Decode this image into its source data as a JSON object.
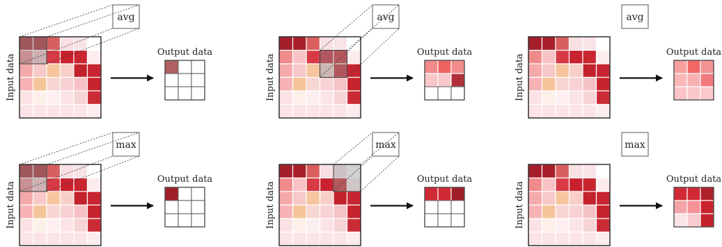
{
  "labels": {
    "input": "Input data",
    "output": "Output data"
  },
  "colors": {
    "grid_line": "#ffffff",
    "border": "#222222",
    "highlight_overlay": "#9a9a9a",
    "empty_cell": "#ffffff"
  },
  "input_grid": [
    [
      "#a41f2a",
      "#a8202b",
      "#d95f5f",
      "#f8dfe2",
      "#f8e3e6",
      "#ffffff"
    ],
    [
      "#f08b8b",
      "#f9c3c6",
      "#d83a45",
      "#c9212f",
      "#c9252f",
      "#fdecee"
    ],
    [
      "#f4a9ab",
      "#f8c8c9",
      "#f6c49d",
      "#f7cfc8",
      "#c3222c",
      "#c72531"
    ],
    [
      "#f6b2b5",
      "#f5c499",
      "#f8d6d2",
      "#f8d1d3",
      "#f5c2c5",
      "#c8242e"
    ],
    [
      "#fbe2e4",
      "#fdf0e8",
      "#fdeef0",
      "#fbe3e6",
      "#f6d4d6",
      "#cb2b35"
    ],
    [
      "#fbe3e6",
      "#fbe4e6",
      "#fbe4e6",
      "#fbe4e6",
      "#fbe4e6",
      "#fbecee"
    ]
  ],
  "panels": [
    {
      "operation": "avg",
      "window": [
        0,
        0
      ],
      "output": [
        "#b06060",
        "",
        "",
        "",
        "",
        "",
        "",
        "",
        ""
      ]
    },
    {
      "operation": "avg",
      "window": [
        1,
        3
      ],
      "output": [
        "#f28b8b",
        "#f16262",
        "#f28c8c",
        "#fac7c8",
        "#f8c8ca",
        "#b0303a",
        "",
        "",
        ""
      ]
    },
    {
      "operation": "avg",
      "window": null,
      "output": [
        "#f9a0a0",
        "#f26666",
        "#f39393",
        "#f9b7b8",
        "#f9b0b2",
        "#f17a7e",
        "#fac4c6",
        "#fac7c8",
        "#fac8ca"
      ]
    },
    {
      "operation": "max",
      "window": [
        0,
        0
      ],
      "output": [
        "#a01e28",
        "",
        "",
        "",
        "",
        "",
        "",
        "",
        ""
      ]
    },
    {
      "operation": "max",
      "window": [
        0,
        4
      ],
      "output": [
        "#d12a35",
        "#d12a35",
        "#a01e28",
        "",
        "",
        "",
        "",
        "",
        ""
      ]
    },
    {
      "operation": "max",
      "window": null,
      "output": [
        "#d12a35",
        "#d12a35",
        "#b0202a",
        "#f5a4a8",
        "#f69296",
        "#c9232d",
        "#fbe4e6",
        "#f8ccd0",
        "#c6222c"
      ]
    }
  ]
}
